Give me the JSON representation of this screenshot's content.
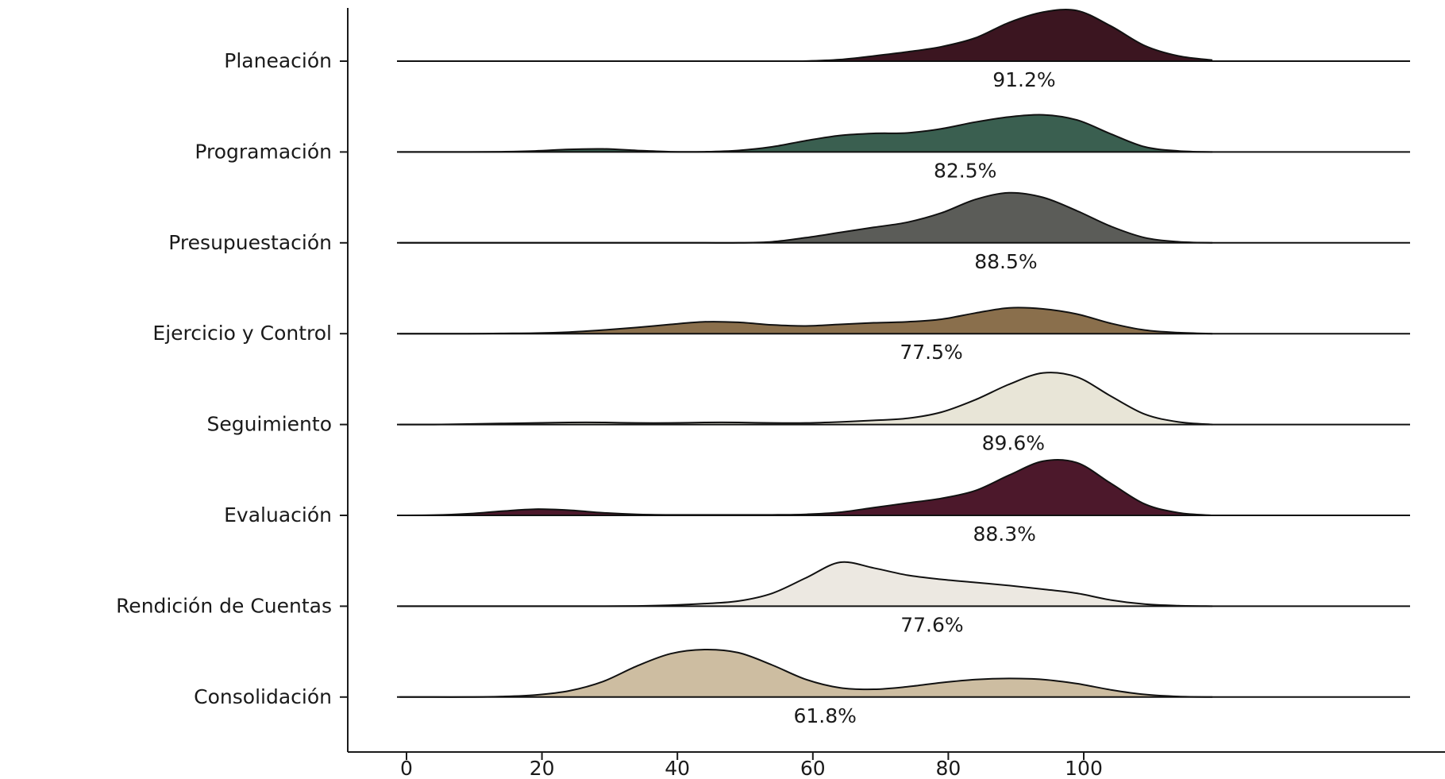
{
  "chart_data": {
    "type": "ridgeline",
    "title": "",
    "xlabel": "",
    "ylabel": "",
    "xlim": [
      -12,
      120
    ],
    "x_ticks": [
      0,
      20,
      40,
      60,
      80,
      100
    ],
    "grid": false,
    "legend": "none",
    "x_grid": [
      -1,
      4,
      9,
      14,
      19,
      24,
      29,
      34,
      39,
      44,
      49,
      54,
      59,
      64,
      69,
      74,
      79,
      84,
      89,
      94,
      99,
      104,
      109,
      114,
      119
    ],
    "series": [
      {
        "category": "Planeación",
        "label": "91.2%",
        "mean": 91.2,
        "color": "#3b1520",
        "density": [
          0,
          0,
          0,
          0,
          0,
          0,
          0,
          0,
          0,
          0,
          0,
          0,
          0.002,
          0.03,
          0.1,
          0.18,
          0.28,
          0.45,
          0.75,
          0.95,
          0.98,
          0.68,
          0.3,
          0.1,
          0.02
        ]
      },
      {
        "category": "Programación",
        "label": "82.5%",
        "mean": 82.5,
        "color": "#3a5f50",
        "density": [
          0,
          0,
          0,
          0.005,
          0.02,
          0.05,
          0.06,
          0.03,
          0.005,
          0.005,
          0.03,
          0.1,
          0.22,
          0.32,
          0.36,
          0.37,
          0.45,
          0.58,
          0.68,
          0.72,
          0.62,
          0.35,
          0.1,
          0.02,
          0
        ]
      },
      {
        "category": "Presupuestación",
        "label": "88.5%",
        "mean": 88.5,
        "color": "#5b5c58",
        "density": [
          0,
          0,
          0,
          0,
          0,
          0,
          0,
          0,
          0,
          0,
          0,
          0.02,
          0.1,
          0.2,
          0.3,
          0.4,
          0.58,
          0.84,
          0.97,
          0.88,
          0.62,
          0.32,
          0.1,
          0.02,
          0
        ]
      },
      {
        "category": "Ejercicio y Control",
        "label": "77.5%",
        "mean": 77.5,
        "color": "#8a6f4c",
        "density": [
          0,
          0,
          0,
          0.005,
          0.01,
          0.03,
          0.07,
          0.12,
          0.18,
          0.23,
          0.22,
          0.17,
          0.15,
          0.18,
          0.21,
          0.23,
          0.28,
          0.4,
          0.5,
          0.48,
          0.38,
          0.2,
          0.07,
          0.02,
          0
        ]
      },
      {
        "category": "Seguimiento",
        "label": "89.6%",
        "mean": 89.6,
        "color": "#e8e5d7",
        "density": [
          0,
          0,
          0.01,
          0.02,
          0.03,
          0.04,
          0.04,
          0.03,
          0.03,
          0.04,
          0.04,
          0.03,
          0.03,
          0.05,
          0.08,
          0.12,
          0.24,
          0.48,
          0.78,
          1.0,
          0.92,
          0.55,
          0.2,
          0.05,
          0
        ]
      },
      {
        "category": "Evaluación",
        "label": "88.3%",
        "mean": 88.3,
        "color": "#4c182b",
        "density": [
          0,
          0.005,
          0.03,
          0.08,
          0.12,
          0.1,
          0.05,
          0.02,
          0.01,
          0.01,
          0.01,
          0.01,
          0.02,
          0.06,
          0.15,
          0.24,
          0.33,
          0.48,
          0.78,
          1.05,
          1.02,
          0.62,
          0.22,
          0.05,
          0
        ]
      },
      {
        "category": "Rendición de Cuentas",
        "label": "77.6%",
        "mean": 77.6,
        "color": "#ece8e1",
        "density": [
          0,
          0,
          0,
          0,
          0,
          0,
          0,
          0.005,
          0.02,
          0.05,
          0.1,
          0.25,
          0.55,
          0.85,
          0.74,
          0.6,
          0.52,
          0.46,
          0.4,
          0.33,
          0.25,
          0.12,
          0.04,
          0.01,
          0
        ]
      },
      {
        "category": "Consolidación",
        "label": "61.8%",
        "mean": 61.8,
        "color": "#cdbda1",
        "density": [
          0,
          0,
          0,
          0.01,
          0.04,
          0.12,
          0.3,
          0.6,
          0.84,
          0.92,
          0.86,
          0.62,
          0.34,
          0.18,
          0.15,
          0.2,
          0.28,
          0.34,
          0.36,
          0.34,
          0.26,
          0.14,
          0.05,
          0.01,
          0
        ]
      }
    ]
  }
}
